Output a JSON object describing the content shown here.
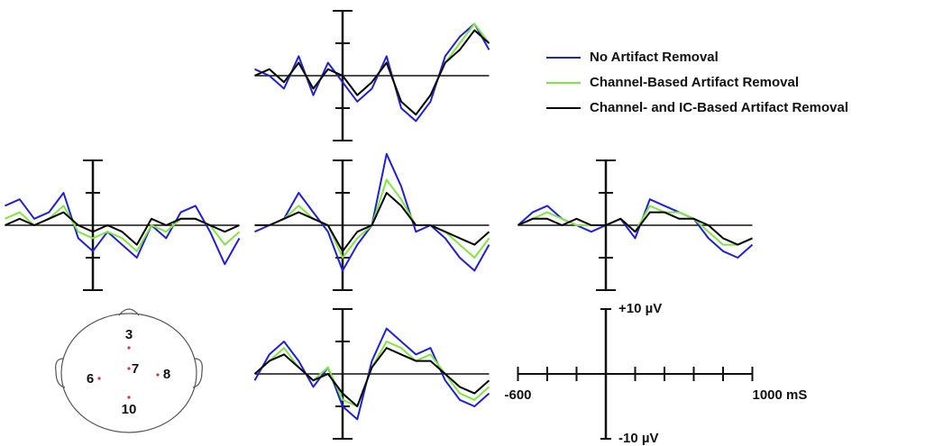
{
  "chart_data": {
    "type": "line",
    "x": [
      -600,
      -500,
      -400,
      -300,
      -200,
      -100,
      0,
      100,
      200,
      300,
      400,
      500,
      600,
      700,
      800,
      900,
      1000
    ],
    "xlim": [
      -600,
      1000
    ],
    "ylim": [
      -10,
      10
    ],
    "xticks": [
      {
        "value": -600,
        "label": "-600"
      },
      {
        "value": 1000,
        "label": "1000 mS"
      }
    ],
    "minor_xticks": [
      -400,
      -200,
      0,
      200,
      400,
      600,
      800
    ],
    "yticks": [
      {
        "value": 10,
        "label": "+10 µV"
      },
      {
        "value": -10,
        "label": "-10 µV"
      }
    ],
    "minor_yticks": [
      -10,
      -5,
      5,
      10
    ],
    "series": [
      {
        "name": "No Artifact Removal",
        "color": "#1f1fe0"
      },
      {
        "name": "Channel-Based Artifact Removal",
        "color": "#7fe83c"
      },
      {
        "name": "Channel- and IC-Based Artifact Removal",
        "color": "#000000"
      }
    ],
    "panels": [
      {
        "values": [
          [
            1,
            0,
            -2,
            3,
            -3,
            2,
            -1,
            -4,
            -2,
            3,
            -5,
            -7,
            -4,
            3,
            6,
            8,
            4
          ],
          [
            0,
            1,
            -1,
            2,
            -2,
            1,
            0,
            -3,
            -1,
            2,
            -4,
            -6,
            -3,
            2,
            5,
            8,
            5
          ],
          [
            0,
            1,
            -1,
            2,
            -2,
            1,
            0,
            -3,
            -1,
            2,
            -4,
            -6,
            -3,
            2,
            4,
            7,
            5
          ]
        ]
      },
      {
        "values": [
          [
            3,
            4,
            1,
            2,
            5,
            -2,
            -4,
            -1,
            -3,
            -5,
            0,
            -2,
            2,
            3,
            -1,
            -6,
            -2
          ],
          [
            1,
            2,
            0,
            1,
            3,
            -1,
            -2,
            -1,
            -2,
            -4,
            0,
            -1,
            1,
            1,
            0,
            -3,
            -1
          ],
          [
            0,
            1,
            0,
            1,
            2,
            0,
            -1,
            0,
            -1,
            -3,
            1,
            0,
            1,
            1,
            0,
            -1,
            0
          ]
        ]
      },
      {
        "values": [
          [
            -1,
            0,
            1,
            5,
            2,
            -1,
            -7,
            -3,
            0,
            11,
            6,
            -1,
            0,
            -2,
            -5,
            -7,
            -3
          ],
          [
            0,
            0,
            1,
            3,
            1,
            0,
            -5,
            -2,
            0,
            7,
            4,
            0,
            0,
            -1,
            -3,
            -5,
            -2
          ],
          [
            0,
            0,
            1,
            2,
            1,
            0,
            -4,
            -1,
            0,
            5,
            3,
            0,
            0,
            -1,
            -2,
            -3,
            -1
          ]
        ]
      },
      {
        "values": [
          [
            0,
            2,
            3,
            1,
            0,
            -1,
            0,
            1,
            -2,
            4,
            3,
            2,
            1,
            -2,
            -4,
            -5,
            -3
          ],
          [
            0,
            1,
            2,
            1,
            0,
            0,
            0,
            1,
            -1,
            3,
            2,
            2,
            1,
            -1,
            -3,
            -3,
            -2
          ],
          [
            0,
            1,
            1,
            0,
            1,
            0,
            0,
            1,
            -1,
            2,
            2,
            1,
            1,
            0,
            -2,
            -3,
            -2
          ]
        ]
      },
      {
        "values": [
          [
            -1,
            3,
            5,
            2,
            -2,
            1,
            -5,
            -7,
            2,
            7,
            5,
            3,
            4,
            -1,
            -4,
            -5,
            -3
          ],
          [
            0,
            2,
            4,
            1,
            -1,
            1,
            -4,
            -5,
            1,
            5,
            4,
            2,
            3,
            0,
            -3,
            -4,
            -2
          ],
          [
            0,
            2,
            3,
            1,
            -1,
            0,
            -3,
            -5,
            1,
            4,
            3,
            2,
            2,
            0,
            -2,
            -3,
            -1
          ]
        ]
      }
    ]
  },
  "head": {
    "electrodes": [
      "3",
      "7",
      "6",
      "8",
      "10"
    ]
  }
}
